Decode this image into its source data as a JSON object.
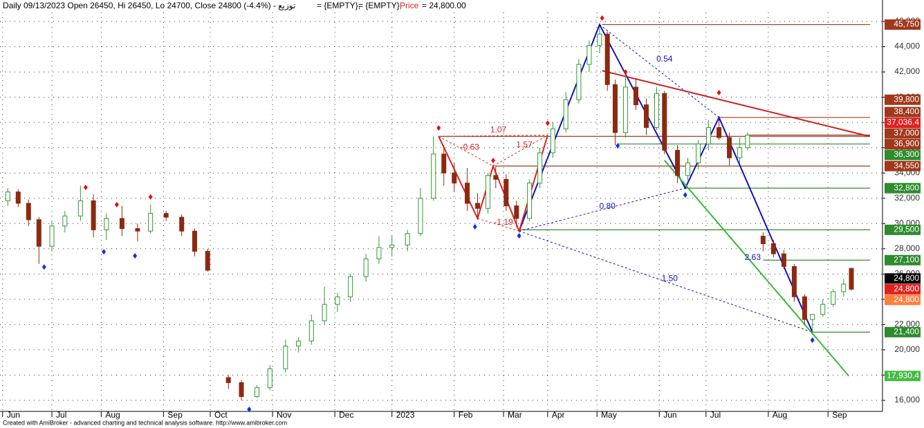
{
  "chart_data": {
    "type": "candlestick",
    "header": {
      "symbol_line": "توزيع - Daily 09/13/2023 Open 26450, Hi 26450, Lo 24700, Close 24800 (-4.4%)",
      "empty1": "= {EMPTY},",
      "empty2": "= {EMPTY},",
      "price_name": "Price",
      "price_value": "= 24,800.00"
    },
    "footer": "Created with AmiBroker - advanced charting and technical analysis software. http://www.amibroker.com",
    "xlim": [
      0,
      340
    ],
    "ylim": [
      15124,
      47697
    ],
    "xticks": [
      {
        "value": 1,
        "label": "Jun"
      },
      {
        "value": 20,
        "label": "Jul"
      },
      {
        "value": 39,
        "label": "Aug"
      },
      {
        "value": 63,
        "label": "Sep"
      },
      {
        "value": 81,
        "label": "Oct"
      },
      {
        "value": 105,
        "label": "Nov"
      },
      {
        "value": 129,
        "label": "Dec"
      },
      {
        "value": 151,
        "label": "2023"
      },
      {
        "value": 175,
        "label": "Feb"
      },
      {
        "value": 194,
        "label": "Mar"
      },
      {
        "value": 211,
        "label": "Apr"
      },
      {
        "value": 230,
        "label": "May"
      },
      {
        "value": 254,
        "label": "Jun"
      },
      {
        "value": 272,
        "label": "Jul"
      },
      {
        "value": 296,
        "label": "Aug"
      },
      {
        "value": 319,
        "label": "Sep"
      }
    ],
    "yticks": [
      {
        "value": 16000,
        "label": "16,000"
      },
      {
        "value": 18000,
        "label": "18,000"
      },
      {
        "value": 20000,
        "label": "20,000"
      },
      {
        "value": 22000,
        "label": "22,000"
      },
      {
        "value": 24000,
        "label": "24,000"
      },
      {
        "value": 26000,
        "label": "26,000"
      },
      {
        "value": 28000,
        "label": "28,000"
      },
      {
        "value": 30000,
        "label": "30,000"
      },
      {
        "value": 32000,
        "label": "32,000"
      },
      {
        "value": 34000,
        "label": "34,000"
      },
      {
        "value": 36000,
        "label": "36,000"
      },
      {
        "value": 38000,
        "label": "38,000"
      },
      {
        "value": 40000,
        "label": "40,000"
      },
      {
        "value": 42000,
        "label": "42,000"
      },
      {
        "value": 44000,
        "label": "44,000"
      },
      {
        "value": 46000,
        "label": "46,000"
      }
    ],
    "grid": true,
    "up_color": "#2e9a2e",
    "down_color": "#8b2a10",
    "x": [
      3,
      7,
      11,
      15,
      20,
      25,
      31,
      36,
      41,
      47,
      53,
      58,
      64,
      70,
      75,
      80,
      88,
      93,
      99,
      104,
      110,
      115,
      120,
      125,
      130,
      135,
      141,
      146,
      151,
      157,
      162,
      167,
      171,
      175,
      180,
      184,
      188,
      191,
      195,
      199,
      204,
      208,
      213,
      218,
      223,
      227,
      231,
      234,
      237,
      241,
      245,
      249,
      253,
      256,
      261,
      265,
      269,
      273,
      277,
      281,
      285,
      288,
      294,
      298,
      302,
      306,
      310,
      313,
      317,
      321,
      325,
      328
    ],
    "open": [
      31800,
      32500,
      31600,
      30300,
      28200,
      29800,
      30600,
      31800,
      29500,
      30400,
      29600,
      29400,
      30800,
      30500,
      29400,
      27800,
      17800,
      17400,
      16300,
      17000,
      18500,
      20300,
      20700,
      22300,
      23600,
      24200,
      25800,
      27200,
      28100,
      28300,
      29200,
      32000,
      35500,
      34000,
      33200,
      31600,
      31200,
      33800,
      33500,
      31400,
      30400,
      33200,
      35600,
      37500,
      39800,
      42600,
      44100,
      45000,
      41000,
      37200,
      40800,
      39400,
      37600,
      40300,
      35800,
      33800,
      34800,
      36300,
      37600,
      36800,
      35200,
      36000,
      29000,
      28400,
      27600,
      26600,
      24200,
      22400,
      22800,
      23600,
      24600,
      26450
    ],
    "high": [
      32800,
      32700,
      31900,
      30500,
      30200,
      31000,
      33000,
      32300,
      30800,
      31400,
      30000,
      31500,
      31000,
      30700,
      29600,
      28000,
      18000,
      17600,
      17200,
      18800,
      20800,
      21000,
      22800,
      25000,
      24500,
      26000,
      27600,
      29000,
      29000,
      29500,
      32800,
      36900,
      36200,
      34800,
      34400,
      32400,
      34000,
      34600,
      33900,
      31800,
      33500,
      36000,
      38000,
      40400,
      43000,
      44500,
      45600,
      45200,
      41400,
      41800,
      41500,
      39900,
      40800,
      40500,
      36200,
      35200,
      36600,
      38200,
      38400,
      37200,
      36800,
      37200,
      29300,
      28700,
      27900,
      26800,
      24400,
      22800,
      24000,
      24800,
      25600,
      26450
    ],
    "low": [
      31400,
      31300,
      29800,
      26800,
      27800,
      29300,
      30200,
      28900,
      28700,
      29000,
      28600,
      29200,
      30200,
      29000,
      27400,
      26200,
      16900,
      16000,
      16200,
      16800,
      18200,
      19800,
      20400,
      22000,
      23000,
      23800,
      25400,
      26800,
      27400,
      27800,
      29000,
      31800,
      33000,
      32500,
      31000,
      30300,
      30800,
      32800,
      31000,
      29700,
      30200,
      32800,
      35200,
      37200,
      39500,
      42000,
      43500,
      40500,
      36200,
      36800,
      39000,
      37000,
      37400,
      35500,
      33200,
      33400,
      34300,
      35800,
      36600,
      34600,
      34800,
      35800,
      27800,
      27300,
      26400,
      23800,
      22000,
      21400,
      22600,
      23400,
      24200,
      24700
    ],
    "close": [
      32500,
      31600,
      30300,
      28200,
      29800,
      30600,
      31800,
      29500,
      30400,
      29600,
      29400,
      30800,
      30500,
      29400,
      27800,
      26300,
      17400,
      16300,
      17000,
      18500,
      20300,
      20700,
      22300,
      23600,
      24200,
      25800,
      27200,
      28100,
      28300,
      29200,
      32000,
      35500,
      34000,
      33200,
      31600,
      31200,
      33800,
      33500,
      31400,
      30400,
      33200,
      35600,
      37500,
      39800,
      42600,
      44100,
      45000,
      41000,
      37200,
      40800,
      39400,
      37600,
      40300,
      35800,
      33800,
      34800,
      36300,
      37600,
      36800,
      35200,
      36000,
      37000,
      28400,
      27600,
      26600,
      24200,
      22400,
      22800,
      23600,
      24600,
      25200,
      24800
    ],
    "levels": [
      {
        "value": 45750,
        "label": "45,750",
        "color": "#a0381c",
        "from": 232
      },
      {
        "value": 39800,
        "label": "39,800",
        "color": "#a0381c"
      },
      {
        "value": 38400,
        "label": "38,400",
        "color": "#a0381c",
        "from": 277
      },
      {
        "value": 37036.4,
        "label": "37,036.4",
        "color": "#e02020"
      },
      {
        "value": 37000,
        "label": "37,000",
        "color": "#a0381c",
        "from": 288
      },
      {
        "value": 36900,
        "label": "36,900",
        "color": "#a0381c",
        "from": 169
      },
      {
        "value": 36300,
        "label": "36,300",
        "color": "#2e8b2e",
        "from": 238
      },
      {
        "value": 34550,
        "label": "34,550",
        "color": "#a0381c",
        "from": 191
      },
      {
        "value": 32800,
        "label": "32,800",
        "color": "#2e8b2e",
        "from": 264
      },
      {
        "value": 29500,
        "label": "29,500",
        "color": "#2e8b2e",
        "from": 200
      },
      {
        "value": 27100,
        "label": "27,100",
        "color": "#2e8b2e",
        "from": 294
      },
      {
        "value": 24800,
        "label": "24,800",
        "color": "#000000"
      },
      {
        "value": 24800,
        "label": "24,800",
        "color": "#e02020"
      },
      {
        "value": 24800,
        "label": "24,800",
        "color": "#ff7f3f"
      },
      {
        "value": 21400,
        "label": "21,400",
        "color": "#2e8b2e",
        "from": 313
      },
      {
        "value": 17930.4,
        "label": "17,930.4",
        "color": "#44bb44"
      }
    ],
    "lines": [
      {
        "color": "#1010c0",
        "dashed": false,
        "x": [
          200,
          231,
          264,
          277,
          313
        ],
        "y": [
          29400,
          45750,
          32800,
          38400,
          21400
        ]
      },
      {
        "color": "#1010c0",
        "dashed": true,
        "x": [
          231,
          277
        ],
        "y": [
          45750,
          38400
        ]
      },
      {
        "color": "#1010c0",
        "dashed": true,
        "x": [
          200,
          264
        ],
        "y": [
          29400,
          32800
        ]
      },
      {
        "color": "#1010c0",
        "dashed": true,
        "x": [
          200,
          313
        ],
        "y": [
          29400,
          21400
        ]
      },
      {
        "color": "#e02020",
        "dashed": false,
        "x": [
          169,
          184,
          190,
          200,
          211
        ],
        "y": [
          36900,
          30400,
          34550,
          29400,
          37000
        ]
      },
      {
        "color": "#e02020",
        "dashed": true,
        "x": [
          169,
          211
        ],
        "y": [
          36900,
          37000
        ]
      },
      {
        "color": "#e02020",
        "dashed": true,
        "x": [
          169,
          190
        ],
        "y": [
          36900,
          34550
        ]
      },
      {
        "color": "#e02020",
        "dashed": true,
        "x": [
          190,
          211
        ],
        "y": [
          34550,
          37000
        ]
      },
      {
        "color": "#e02020",
        "dashed": true,
        "x": [
          184,
          200
        ],
        "y": [
          30400,
          29400
        ]
      },
      {
        "color": "#d02020",
        "dashed": false,
        "x": [
          232,
          335
        ],
        "y": [
          42100,
          36900
        ]
      },
      {
        "color": "#33bb33",
        "dashed": false,
        "x": [
          256,
          327
        ],
        "y": [
          35000,
          17930
        ]
      }
    ],
    "annotations": [
      {
        "text": "0.54",
        "x": 256,
        "y": 43000,
        "color": "#1010c0"
      },
      {
        "text": "0.80",
        "x": 234,
        "y": 31330,
        "color": "#1010c0"
      },
      {
        "text": "1.50",
        "x": 258,
        "y": 25630,
        "color": "#1010c0"
      },
      {
        "text": "2.63",
        "x": 290,
        "y": 27280,
        "color": "#1010c0"
      },
      {
        "text": "1.07",
        "x": 192,
        "y": 37400,
        "color": "#e02020"
      },
      {
        "text": "-0.63",
        "x": 181,
        "y": 36030,
        "color": "#e02020"
      },
      {
        "text": "1.57",
        "x": 202,
        "y": 36200,
        "color": "#e02020"
      },
      {
        "text": "-1.19",
        "x": 194,
        "y": 30070,
        "color": "#e02020"
      }
    ],
    "swing_highs": {
      "color": "#e01010",
      "x": [
        33,
        45,
        58,
        169,
        190,
        211,
        232,
        241,
        277
      ],
      "y": [
        32860,
        31490,
        32100,
        37570,
        34990,
        37950,
        46270,
        42000,
        40360
      ]
    },
    "swing_lows": {
      "color": "#1030e0",
      "x": [
        17,
        40,
        52,
        96,
        183,
        200,
        238,
        264,
        313
      ],
      "y": [
        26560,
        27760,
        27440,
        15290,
        29740,
        29030,
        36150,
        32260,
        20760
      ]
    }
  }
}
